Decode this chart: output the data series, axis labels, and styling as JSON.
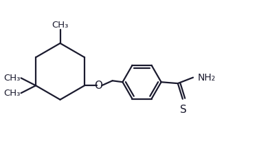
{
  "bg_color": "#ffffff",
  "line_color": "#1a1a2e",
  "line_width": 1.6,
  "font_size": 10,
  "figsize": [
    3.77,
    2.31
  ],
  "dpi": 100,
  "xlim": [
    0,
    9.5
  ],
  "ylim": [
    0,
    5.8
  ]
}
